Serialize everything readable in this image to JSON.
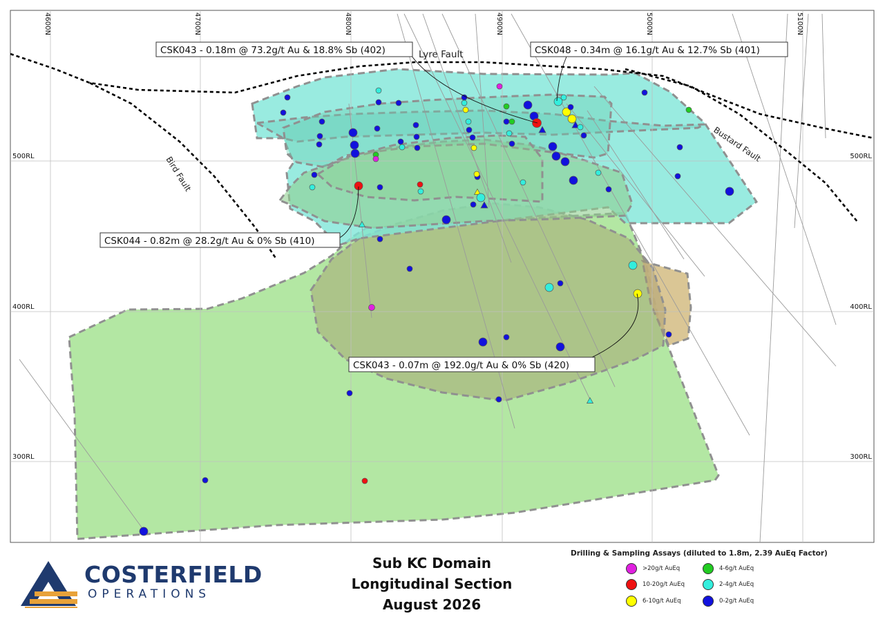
{
  "section": {
    "northings": [
      "4600N",
      "4700N",
      "4800N",
      "4900N",
      "5000N",
      "5100N"
    ],
    "levels": [
      "500RL",
      "400RL",
      "300RL"
    ]
  },
  "faults": [
    {
      "name": "Lyre Fault"
    },
    {
      "name": "Bird Fault"
    },
    {
      "name": "Bustard Fault"
    }
  ],
  "callouts": [
    {
      "text": "CSK043 - 0.18m @ 73.2g/t Au & 18.8% Sb (402)"
    },
    {
      "text": "CSK048 - 0.34m @ 16.1g/t Au & 12.7% Sb (401)"
    },
    {
      "text": "CSK044 - 0.82m @ 28.2g/t Au & 0% Sb (410)"
    },
    {
      "text": "CSK043 - 0.07m @ 192.0g/t Au & 0% Sb (420)"
    }
  ],
  "colors": {
    "grade_gt20": "#e020e0",
    "grade_10_20": "#ee1111",
    "grade_6_10": "#ffff00",
    "grade_4_6": "#22cc22",
    "grade_2_4": "#33eedd",
    "grade_0_2": "#1111dd",
    "domain_cyan": "#7fe6d8",
    "domain_green": "#a6e393",
    "domain_tan": "#d6c08a",
    "logo_navy": "#1f3a6e",
    "logo_orange": "#e8a23a"
  },
  "logo": {
    "name": "COSTERFIELD",
    "subtitle": "OPERATIONS"
  },
  "caption": {
    "line1": "Sub KC Domain",
    "line2": "Longitudinal Section",
    "line3": "August 2026"
  },
  "legend": {
    "title": "Drilling & Sampling Assays (diluted to 1.8m, 2.39 AuEq Factor)",
    "items": [
      {
        "label": ">20g/t AuEq",
        "color": "#e020e0"
      },
      {
        "label": "4-6g/t AuEq",
        "color": "#22cc22"
      },
      {
        "label": "10-20g/t AuEq",
        "color": "#ee1111"
      },
      {
        "label": "2-4g/t AuEq",
        "color": "#33eedd"
      },
      {
        "label": "6-10g/t AuEq",
        "color": "#ffff00"
      },
      {
        "label": "0-2g/t AuEq",
        "color": "#1111dd"
      }
    ]
  }
}
